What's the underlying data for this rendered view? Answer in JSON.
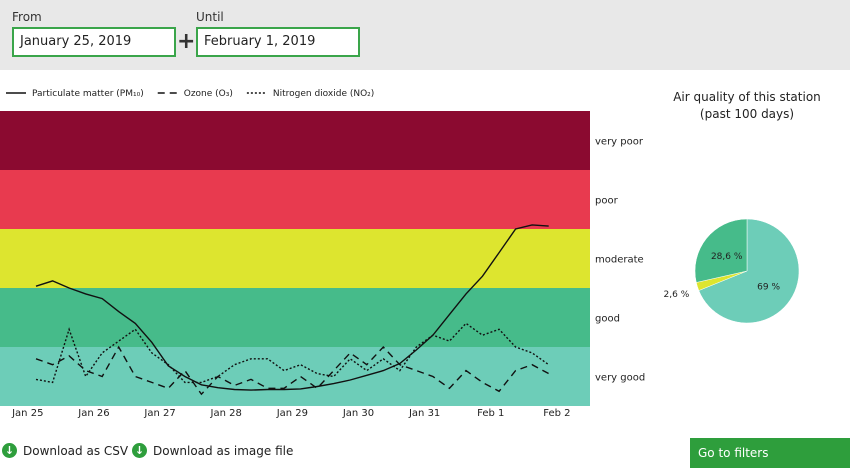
{
  "filters": {
    "from_label": "From",
    "from_value": "January 25, 2019",
    "until_label": "Until",
    "until_value": "February 1, 2019",
    "plus": "+"
  },
  "downloads": [
    "Download as CSV",
    "Download as image file"
  ],
  "button": "Go to filters",
  "chart_data": [
    {
      "type": "line",
      "bands": [
        {
          "label": "very good",
          "color": "#6dcdb8"
        },
        {
          "label": "good",
          "color": "#46bb8a"
        },
        {
          "label": "moderate",
          "color": "#dde52f"
        },
        {
          "label": "poor",
          "color": "#e83a4f"
        },
        {
          "label": "very poor",
          "color": "#8b0a30"
        }
      ],
      "ylim": [
        0,
        5
      ],
      "xlim": [
        -0.42,
        8.5
      ],
      "xticks": [
        {
          "value": 0,
          "label": "Jan 25"
        },
        {
          "value": 1,
          "label": "Jan 26"
        },
        {
          "value": 2,
          "label": "Jan 27"
        },
        {
          "value": 3,
          "label": "Jan 28"
        },
        {
          "value": 4,
          "label": "Jan 29"
        },
        {
          "value": 5,
          "label": "Jan 30"
        },
        {
          "value": 6,
          "label": "Jan 31"
        },
        {
          "value": 7,
          "label": "Feb 1"
        },
        {
          "value": 8,
          "label": "Feb 2"
        }
      ],
      "x": [
        0.125,
        0.375,
        0.625,
        0.875,
        1.125,
        1.375,
        1.625,
        1.875,
        2.125,
        2.375,
        2.625,
        2.875,
        3.125,
        3.375,
        3.625,
        3.875,
        4.125,
        4.375,
        4.625,
        4.875,
        5.125,
        5.375,
        5.625,
        5.875,
        6.125,
        6.375,
        6.625,
        6.875,
        7.125,
        7.375,
        7.625,
        7.875
      ],
      "series": [
        {
          "name": "Particulate matter (PM₁₀)",
          "color": "#111111",
          "style": "solid",
          "values": [
            2.03,
            2.12,
            2.0,
            1.9,
            1.82,
            1.6,
            1.4,
            1.08,
            0.68,
            0.5,
            0.36,
            0.31,
            0.28,
            0.27,
            0.28,
            0.28,
            0.29,
            0.33,
            0.38,
            0.44,
            0.52,
            0.6,
            0.72,
            0.95,
            1.2,
            1.55,
            1.9,
            2.2,
            2.6,
            3.0,
            3.07,
            3.05
          ]
        },
        {
          "name": "Ozone (O₃)",
          "color": "#111111",
          "style": "dashed",
          "values": [
            0.8,
            0.7,
            0.85,
            0.6,
            0.5,
            1.0,
            0.5,
            0.4,
            0.3,
            0.6,
            0.2,
            0.5,
            0.35,
            0.45,
            0.3,
            0.3,
            0.5,
            0.3,
            0.6,
            0.9,
            0.7,
            1.0,
            0.7,
            0.6,
            0.5,
            0.3,
            0.6,
            0.4,
            0.25,
            0.6,
            0.7,
            0.55
          ]
        },
        {
          "name": "Nitrogen dioxide (NO₂)",
          "color": "#111111",
          "style": "dotted",
          "values": [
            0.45,
            0.4,
            1.3,
            0.5,
            0.9,
            1.1,
            1.3,
            0.9,
            0.7,
            0.4,
            0.4,
            0.5,
            0.7,
            0.8,
            0.8,
            0.6,
            0.7,
            0.55,
            0.5,
            0.8,
            0.6,
            0.8,
            0.6,
            1.0,
            1.2,
            1.1,
            1.4,
            1.2,
            1.3,
            1.0,
            0.9,
            0.7
          ]
        }
      ]
    },
    {
      "type": "pie",
      "title": [
        "Air quality of this station",
        "(past 100 days)"
      ],
      "categories": [
        "very good",
        "moderate",
        "good"
      ],
      "values": [
        69,
        2.6,
        28.6
      ],
      "value_labels": [
        "69 %",
        "2,6 %",
        "28,6 %"
      ],
      "colors": [
        "#6dcdb8",
        "#dde52f",
        "#46bb8a"
      ]
    }
  ]
}
